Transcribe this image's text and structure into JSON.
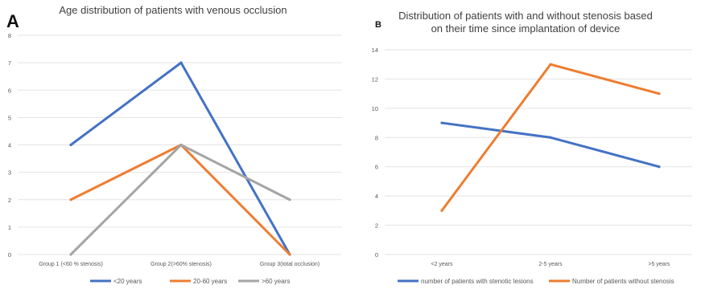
{
  "chart_data": [
    {
      "panel_label": "A",
      "type": "line",
      "title": "Age distribution of patients with venous occlusion",
      "categories": [
        "Group 1 (<60 % stenosis)",
        "Group 2(>60% stenosis)",
        "Group 3(total occlusion)"
      ],
      "y_ticks": [
        "0",
        "1",
        "2",
        "3",
        "4",
        "5",
        "6",
        "7",
        "8"
      ],
      "ylim": [
        0,
        8
      ],
      "grid": true,
      "legend_position": "bottom",
      "series": [
        {
          "name": "<20 years",
          "values": [
            4,
            7,
            0
          ],
          "color": "#4472C4"
        },
        {
          "name": "20-60 years",
          "values": [
            2,
            4,
            0
          ],
          "color": "#ED7D31"
        },
        {
          "name": ">60 years",
          "values": [
            0,
            4,
            2
          ],
          "color": "#A5A5A5"
        }
      ]
    },
    {
      "panel_label": "B",
      "type": "line",
      "title": "Distribution of patients with and without stenosis based on their time since implantation of device",
      "title_lines": [
        "Distribution of patients with and without stenosis based",
        "on their time since implantation of device"
      ],
      "categories": [
        "<2 years",
        "2-5 years",
        ">5 years"
      ],
      "y_ticks": [
        "0",
        "2",
        "4",
        "6",
        "8",
        "10",
        "12",
        "14"
      ],
      "ylim": [
        0,
        14
      ],
      "grid": true,
      "legend_position": "bottom",
      "series": [
        {
          "name": "number of patients with stenotic lesions",
          "values": [
            9,
            8,
            6
          ],
          "color": "#4472C4"
        },
        {
          "name": "Number of patients without stenosis",
          "values": [
            3,
            13,
            11
          ],
          "color": "#ED7D31"
        }
      ]
    }
  ]
}
